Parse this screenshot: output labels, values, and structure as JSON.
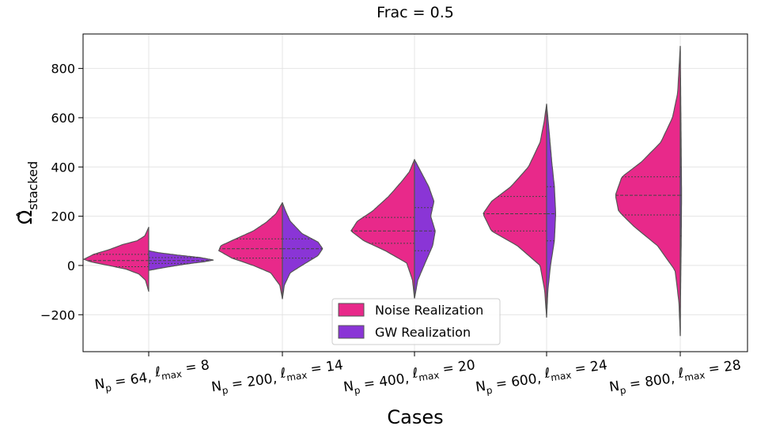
{
  "chart_data": {
    "type": "violin",
    "title": "Frac = 0.5",
    "xlabel": "Cases",
    "ylabel": "Ω̂",
    "ylabel_subscript": "stacked",
    "ylim": [
      -350,
      940
    ],
    "yticks": [
      -200,
      0,
      200,
      400,
      600,
      800
    ],
    "ytick_labels": [
      "−200",
      "0",
      "200",
      "400",
      "600",
      "800"
    ],
    "grid": true,
    "legend_position": "lower-center",
    "categories": [
      {
        "np": "64",
        "lmax": "8"
      },
      {
        "np": "200",
        "lmax": "14"
      },
      {
        "np": "400",
        "lmax": "20"
      },
      {
        "np": "600",
        "lmax": "24"
      },
      {
        "np": "800",
        "lmax": "28"
      }
    ],
    "series": [
      {
        "name": "Noise Realization",
        "color": "#e8298a",
        "side": "left",
        "violins": [
          {
            "min": -105,
            "max": 155,
            "q1": -5,
            "median": 20,
            "q3": 45,
            "profile": [
              [
                -105,
                0
              ],
              [
                -60,
                0.05
              ],
              [
                -35,
                0.15
              ],
              [
                -15,
                0.35
              ],
              [
                0,
                0.62
              ],
              [
                15,
                0.9
              ],
              [
                25,
                1.0
              ],
              [
                45,
                0.85
              ],
              [
                65,
                0.6
              ],
              [
                85,
                0.4
              ],
              [
                100,
                0.18
              ],
              [
                120,
                0.06
              ],
              [
                155,
                0
              ]
            ]
          },
          {
            "min": -135,
            "max": 255,
            "q1": 30,
            "median": 68,
            "q3": 108,
            "profile": [
              [
                -135,
                0
              ],
              [
                -80,
                0.04
              ],
              [
                -30,
                0.18
              ],
              [
                0,
                0.45
              ],
              [
                30,
                0.78
              ],
              [
                60,
                0.98
              ],
              [
                80,
                0.95
              ],
              [
                108,
                0.72
              ],
              [
                140,
                0.45
              ],
              [
                175,
                0.25
              ],
              [
                210,
                0.1
              ],
              [
                255,
                0
              ]
            ]
          },
          {
            "min": -135,
            "max": 430,
            "q1": 90,
            "median": 140,
            "q3": 195,
            "profile": [
              [
                -135,
                0
              ],
              [
                -60,
                0.03
              ],
              [
                10,
                0.12
              ],
              [
                60,
                0.45
              ],
              [
                100,
                0.78
              ],
              [
                140,
                0.98
              ],
              [
                180,
                0.88
              ],
              [
                220,
                0.65
              ],
              [
                280,
                0.4
              ],
              [
                340,
                0.2
              ],
              [
                380,
                0.08
              ],
              [
                430,
                0
              ]
            ]
          },
          {
            "min": -210,
            "max": 655,
            "q1": 140,
            "median": 210,
            "q3": 280,
            "profile": [
              [
                -210,
                0
              ],
              [
                -100,
                0.03
              ],
              [
                0,
                0.1
              ],
              [
                80,
                0.45
              ],
              [
                140,
                0.85
              ],
              [
                210,
                0.98
              ],
              [
                260,
                0.85
              ],
              [
                320,
                0.55
              ],
              [
                400,
                0.28
              ],
              [
                500,
                0.1
              ],
              [
                580,
                0.04
              ],
              [
                655,
                0
              ]
            ]
          },
          {
            "min": -285,
            "max": 890,
            "q1": 205,
            "median": 285,
            "q3": 360,
            "profile": [
              [
                -285,
                0
              ],
              [
                -150,
                0.02
              ],
              [
                -20,
                0.08
              ],
              [
                80,
                0.35
              ],
              [
                160,
                0.72
              ],
              [
                220,
                0.95
              ],
              [
                285,
                1.0
              ],
              [
                360,
                0.9
              ],
              [
                420,
                0.6
              ],
              [
                500,
                0.3
              ],
              [
                600,
                0.12
              ],
              [
                700,
                0.04
              ],
              [
                890,
                0
              ]
            ]
          }
        ]
      },
      {
        "name": "GW Realization",
        "color": "#8a35d6",
        "side": "right",
        "violins": [
          {
            "min": -20,
            "max": 60,
            "q1": 8,
            "median": 20,
            "q3": 32,
            "profile": [
              [
                -20,
                0
              ],
              [
                -8,
                0.25
              ],
              [
                5,
                0.55
              ],
              [
                15,
                0.85
              ],
              [
                22,
                1.0
              ],
              [
                32,
                0.8
              ],
              [
                42,
                0.45
              ],
              [
                52,
                0.15
              ],
              [
                60,
                0
              ]
            ]
          },
          {
            "min": -135,
            "max": 255,
            "q1": 30,
            "median": 68,
            "q3": 108,
            "profile": [
              [
                -135,
                0
              ],
              [
                -80,
                0.03
              ],
              [
                -30,
                0.12
              ],
              [
                0,
                0.3
              ],
              [
                40,
                0.55
              ],
              [
                68,
                0.62
              ],
              [
                95,
                0.55
              ],
              [
                130,
                0.3
              ],
              [
                180,
                0.12
              ],
              [
                220,
                0.05
              ],
              [
                255,
                0
              ]
            ]
          },
          {
            "min": -135,
            "max": 430,
            "q1": 60,
            "median": 140,
            "q3": 235,
            "profile": [
              [
                -135,
                0
              ],
              [
                -60,
                0.05
              ],
              [
                20,
                0.18
              ],
              [
                80,
                0.28
              ],
              [
                140,
                0.32
              ],
              [
                200,
                0.25
              ],
              [
                260,
                0.3
              ],
              [
                320,
                0.22
              ],
              [
                380,
                0.1
              ],
              [
                430,
                0
              ]
            ]
          },
          {
            "min": -210,
            "max": 655,
            "q1": 100,
            "median": 210,
            "q3": 320,
            "profile": [
              [
                -210,
                0
              ],
              [
                -100,
                0.02
              ],
              [
                0,
                0.06
              ],
              [
                100,
                0.12
              ],
              [
                210,
                0.14
              ],
              [
                320,
                0.12
              ],
              [
                420,
                0.08
              ],
              [
                540,
                0.04
              ],
              [
                655,
                0
              ]
            ]
          },
          {
            "min": -285,
            "max": 890,
            "q1": 120,
            "median": 285,
            "q3": 400,
            "profile": [
              [
                -285,
                0
              ],
              [
                -100,
                0.005
              ],
              [
                100,
                0.015
              ],
              [
                285,
                0.02
              ],
              [
                450,
                0.015
              ],
              [
                650,
                0.008
              ],
              [
                890,
                0
              ]
            ]
          }
        ]
      }
    ]
  }
}
